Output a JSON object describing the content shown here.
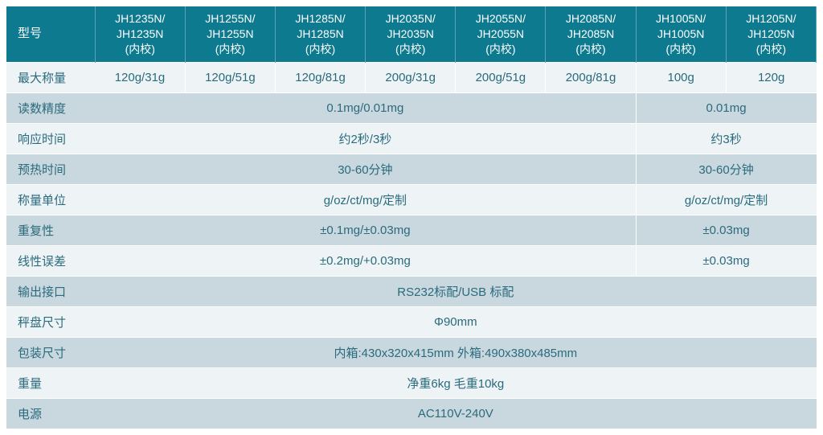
{
  "colors": {
    "header_bg": "#0d7a8f",
    "header_text": "#ffffff",
    "row_light": "#eef3f6",
    "row_dark": "#c9d7df",
    "cell_text": "#2a6b7d",
    "border": "#ffffff"
  },
  "table": {
    "header_label": "型号",
    "models": [
      "JH1235N/\nJH1235N\n(内校)",
      "JH1255N/\nJH1255N\n(内校)",
      "JH1285N/\nJH1285N\n(内校)",
      "JH2035N/\nJH2035N\n(内校)",
      "JH2055N/\nJH2055N\n(内校)",
      "JH2085N/\nJH2085N\n(内校)",
      "JH1005N/\nJH1005N\n(内校)",
      "JH1205N/\nJH1205N\n(内校)"
    ],
    "rows": [
      {
        "label": "最大称量",
        "cells": [
          {
            "text": "120g/31g",
            "span": 1
          },
          {
            "text": "120g/51g",
            "span": 1
          },
          {
            "text": "120g/81g",
            "span": 1
          },
          {
            "text": "200g/31g",
            "span": 1
          },
          {
            "text": "200g/51g",
            "span": 1
          },
          {
            "text": "200g/81g",
            "span": 1
          },
          {
            "text": "100g",
            "span": 1
          },
          {
            "text": "120g",
            "span": 1
          }
        ]
      },
      {
        "label": "读数精度",
        "cells": [
          {
            "text": "0.1mg/0.01mg",
            "span": 6
          },
          {
            "text": "0.01mg",
            "span": 2
          }
        ]
      },
      {
        "label": "响应时间",
        "cells": [
          {
            "text": "约2秒/3秒",
            "span": 6
          },
          {
            "text": "约3秒",
            "span": 2
          }
        ]
      },
      {
        "label": "预热时间",
        "cells": [
          {
            "text": "30-60分钟",
            "span": 6
          },
          {
            "text": "30-60分钟",
            "span": 2
          }
        ]
      },
      {
        "label": "称量单位",
        "cells": [
          {
            "text": "g/oz/ct/mg/定制",
            "span": 6
          },
          {
            "text": "g/oz/ct/mg/定制",
            "span": 2
          }
        ]
      },
      {
        "label": "重复性",
        "cells": [
          {
            "text": "±0.1mg/±0.03mg",
            "span": 6
          },
          {
            "text": "±0.03mg",
            "span": 2
          }
        ]
      },
      {
        "label": "线性误差",
        "cells": [
          {
            "text": "±0.2mg/+0.03mg",
            "span": 6
          },
          {
            "text": "±0.03mg",
            "span": 2
          }
        ]
      },
      {
        "label": "输出接口",
        "cells": [
          {
            "text": "RS232标配/USB 标配",
            "span": 8
          }
        ]
      },
      {
        "label": "秤盘尺寸",
        "cells": [
          {
            "text": "Φ90mm",
            "span": 8
          }
        ]
      },
      {
        "label": "包装尺寸",
        "cells": [
          {
            "text": "内箱:430x320x415mm 外箱:490x380x485mm",
            "span": 8
          }
        ]
      },
      {
        "label": "重量",
        "cells": [
          {
            "text": "净重6kg 毛重10kg",
            "span": 8
          }
        ]
      },
      {
        "label": "电源",
        "cells": [
          {
            "text": "AC110V-240V",
            "span": 8
          }
        ]
      }
    ]
  }
}
